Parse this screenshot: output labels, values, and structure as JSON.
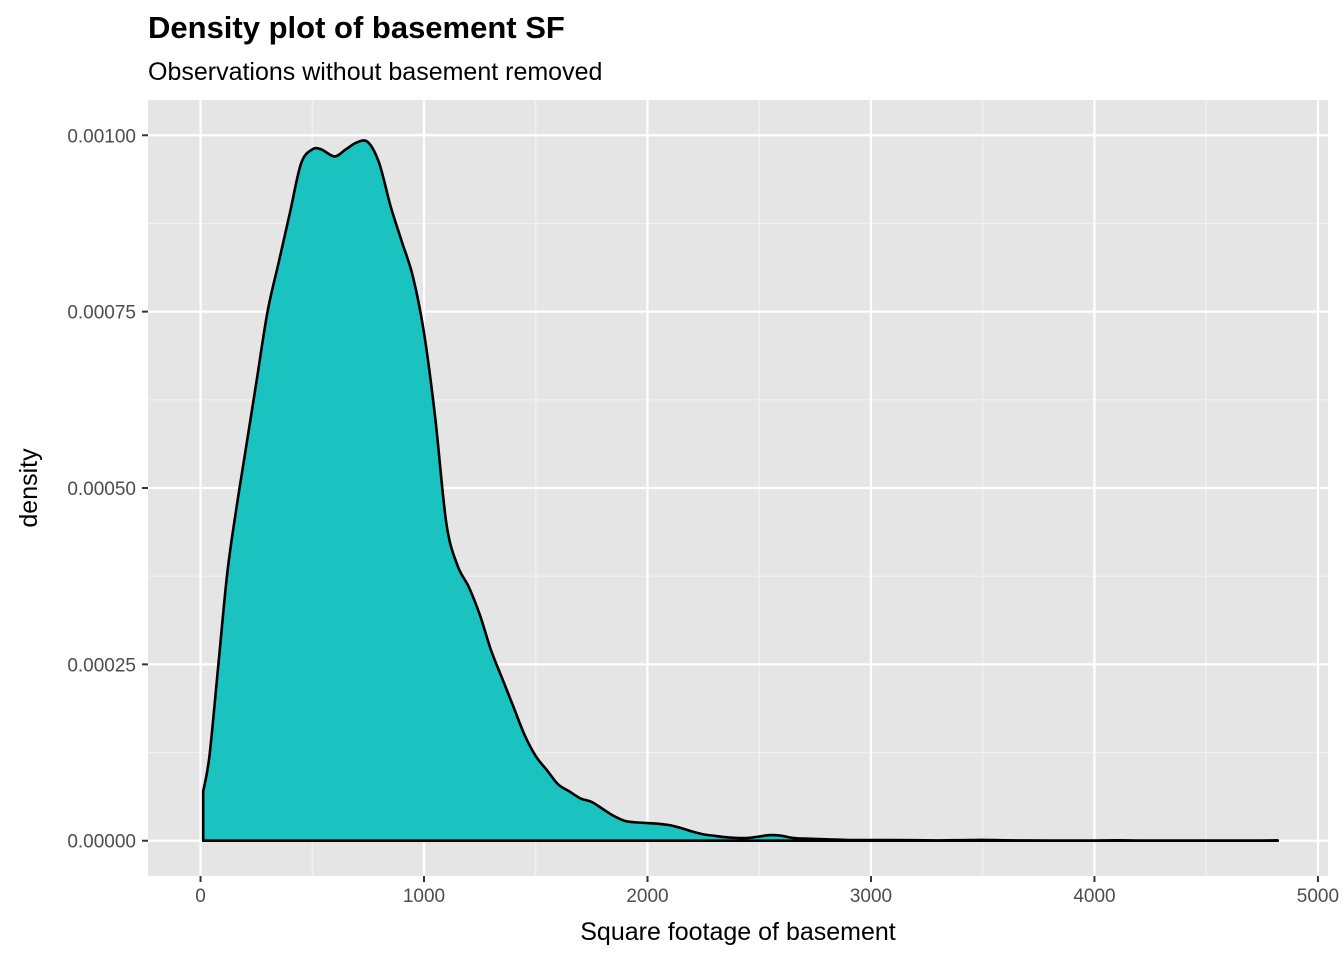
{
  "chart_data": {
    "type": "area",
    "title": "Density plot of basement SF",
    "subtitle": "Observations without basement removed",
    "xlabel": "Square footage of basement",
    "ylabel": "density",
    "xlim": [
      -235,
      5045
    ],
    "ylim": [
      -5e-05,
      0.00105
    ],
    "x_ticks": [
      0,
      1000,
      2000,
      3000,
      4000,
      5000
    ],
    "x_tick_labels": [
      "0",
      "1000",
      "2000",
      "3000",
      "4000",
      "5000"
    ],
    "y_ticks": [
      0,
      0.00025,
      0.0005,
      0.00075,
      0.001
    ],
    "y_tick_labels": [
      "0.00000",
      "0.00025",
      "0.00050",
      "0.00075",
      "0.00100"
    ],
    "grid": true,
    "fill_color": "#1BC3C0",
    "line_color": "#000000",
    "panel_background": "#E5E5E5",
    "series": [
      {
        "x": [
          12,
          40,
          80,
          120,
          160,
          200,
          250,
          300,
          350,
          400,
          450,
          500,
          540,
          600,
          650,
          700,
          750,
          800,
          850,
          900,
          950,
          1000,
          1050,
          1100,
          1150,
          1200,
          1250,
          1300,
          1350,
          1400,
          1450,
          1500,
          1550,
          1600,
          1650,
          1700,
          1750,
          1800,
          1850,
          1900,
          1950,
          2000,
          2050,
          2100,
          2150,
          2200,
          2250,
          2300,
          2350,
          2400,
          2450,
          2500,
          2550,
          2600,
          2650,
          2700,
          2800,
          2900,
          3000,
          3100,
          3200,
          3300,
          3400,
          3500,
          3600,
          3700,
          3800,
          3900,
          4000,
          4100,
          4200,
          4300,
          4400,
          4500,
          4600,
          4700,
          4800,
          4820
        ],
        "y": [
          7e-05,
          0.00012,
          0.00025,
          0.00038,
          0.00047,
          0.00055,
          0.00065,
          0.00075,
          0.00082,
          0.00089,
          0.00096,
          0.00098,
          0.00098,
          0.00097,
          0.00098,
          0.00099,
          0.00099,
          0.00096,
          0.0009,
          0.00085,
          0.0008,
          0.00072,
          0.0006,
          0.00045,
          0.00039,
          0.00036,
          0.00032,
          0.00027,
          0.00023,
          0.00019,
          0.00015,
          0.00012,
          0.0001,
          8e-05,
          7e-05,
          6e-05,
          5.5e-05,
          4.5e-05,
          3.5e-05,
          2.8e-05,
          2.6e-05,
          2.5e-05,
          2.4e-05,
          2.2e-05,
          1.8e-05,
          1.3e-05,
          9e-06,
          7e-06,
          5e-06,
          4e-06,
          4e-06,
          6e-06,
          8e-06,
          7e-06,
          4e-06,
          3e-06,
          2e-06,
          1e-06,
          1e-06,
          1e-06,
          8e-07,
          5e-07,
          8e-07,
          1.2e-06,
          6e-07,
          4e-07,
          3e-07,
          3e-07,
          3e-07,
          6e-07,
          3e-07,
          2e-07,
          2e-07,
          2e-07,
          2e-07,
          2e-07,
          5e-07,
          5e-07
        ]
      }
    ]
  }
}
